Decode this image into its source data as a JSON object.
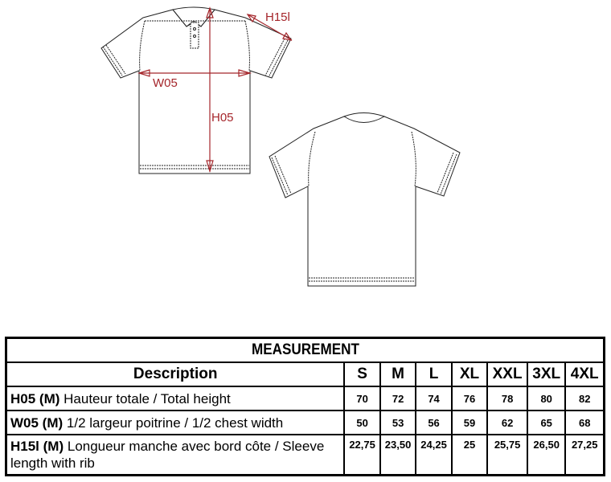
{
  "diagram": {
    "labels": {
      "height": "H05",
      "width": "W05",
      "sleeve": "H15l"
    },
    "arrow_color": "#a5262b"
  },
  "table": {
    "title": "MEASUREMENT",
    "description_header": "Description",
    "sizes": [
      "S",
      "M",
      "L",
      "XL",
      "XXL",
      "3XL",
      "4XL"
    ],
    "rows": [
      {
        "code": "H05 (M)",
        "text": "Hauteur totale / Total height",
        "values": [
          "70",
          "72",
          "74",
          "76",
          "78",
          "80",
          "82"
        ]
      },
      {
        "code": "W05 (M)",
        "text": "1/2 largeur poitrine / 1/2 chest width",
        "values": [
          "50",
          "53",
          "56",
          "59",
          "62",
          "65",
          "68"
        ]
      },
      {
        "code": "H15l (M)",
        "text": "Longueur manche avec bord côte / Sleeve length with rib",
        "values": [
          "22,75",
          "23,50",
          "24,25",
          "25",
          "25,75",
          "26,50",
          "27,25"
        ]
      }
    ]
  }
}
